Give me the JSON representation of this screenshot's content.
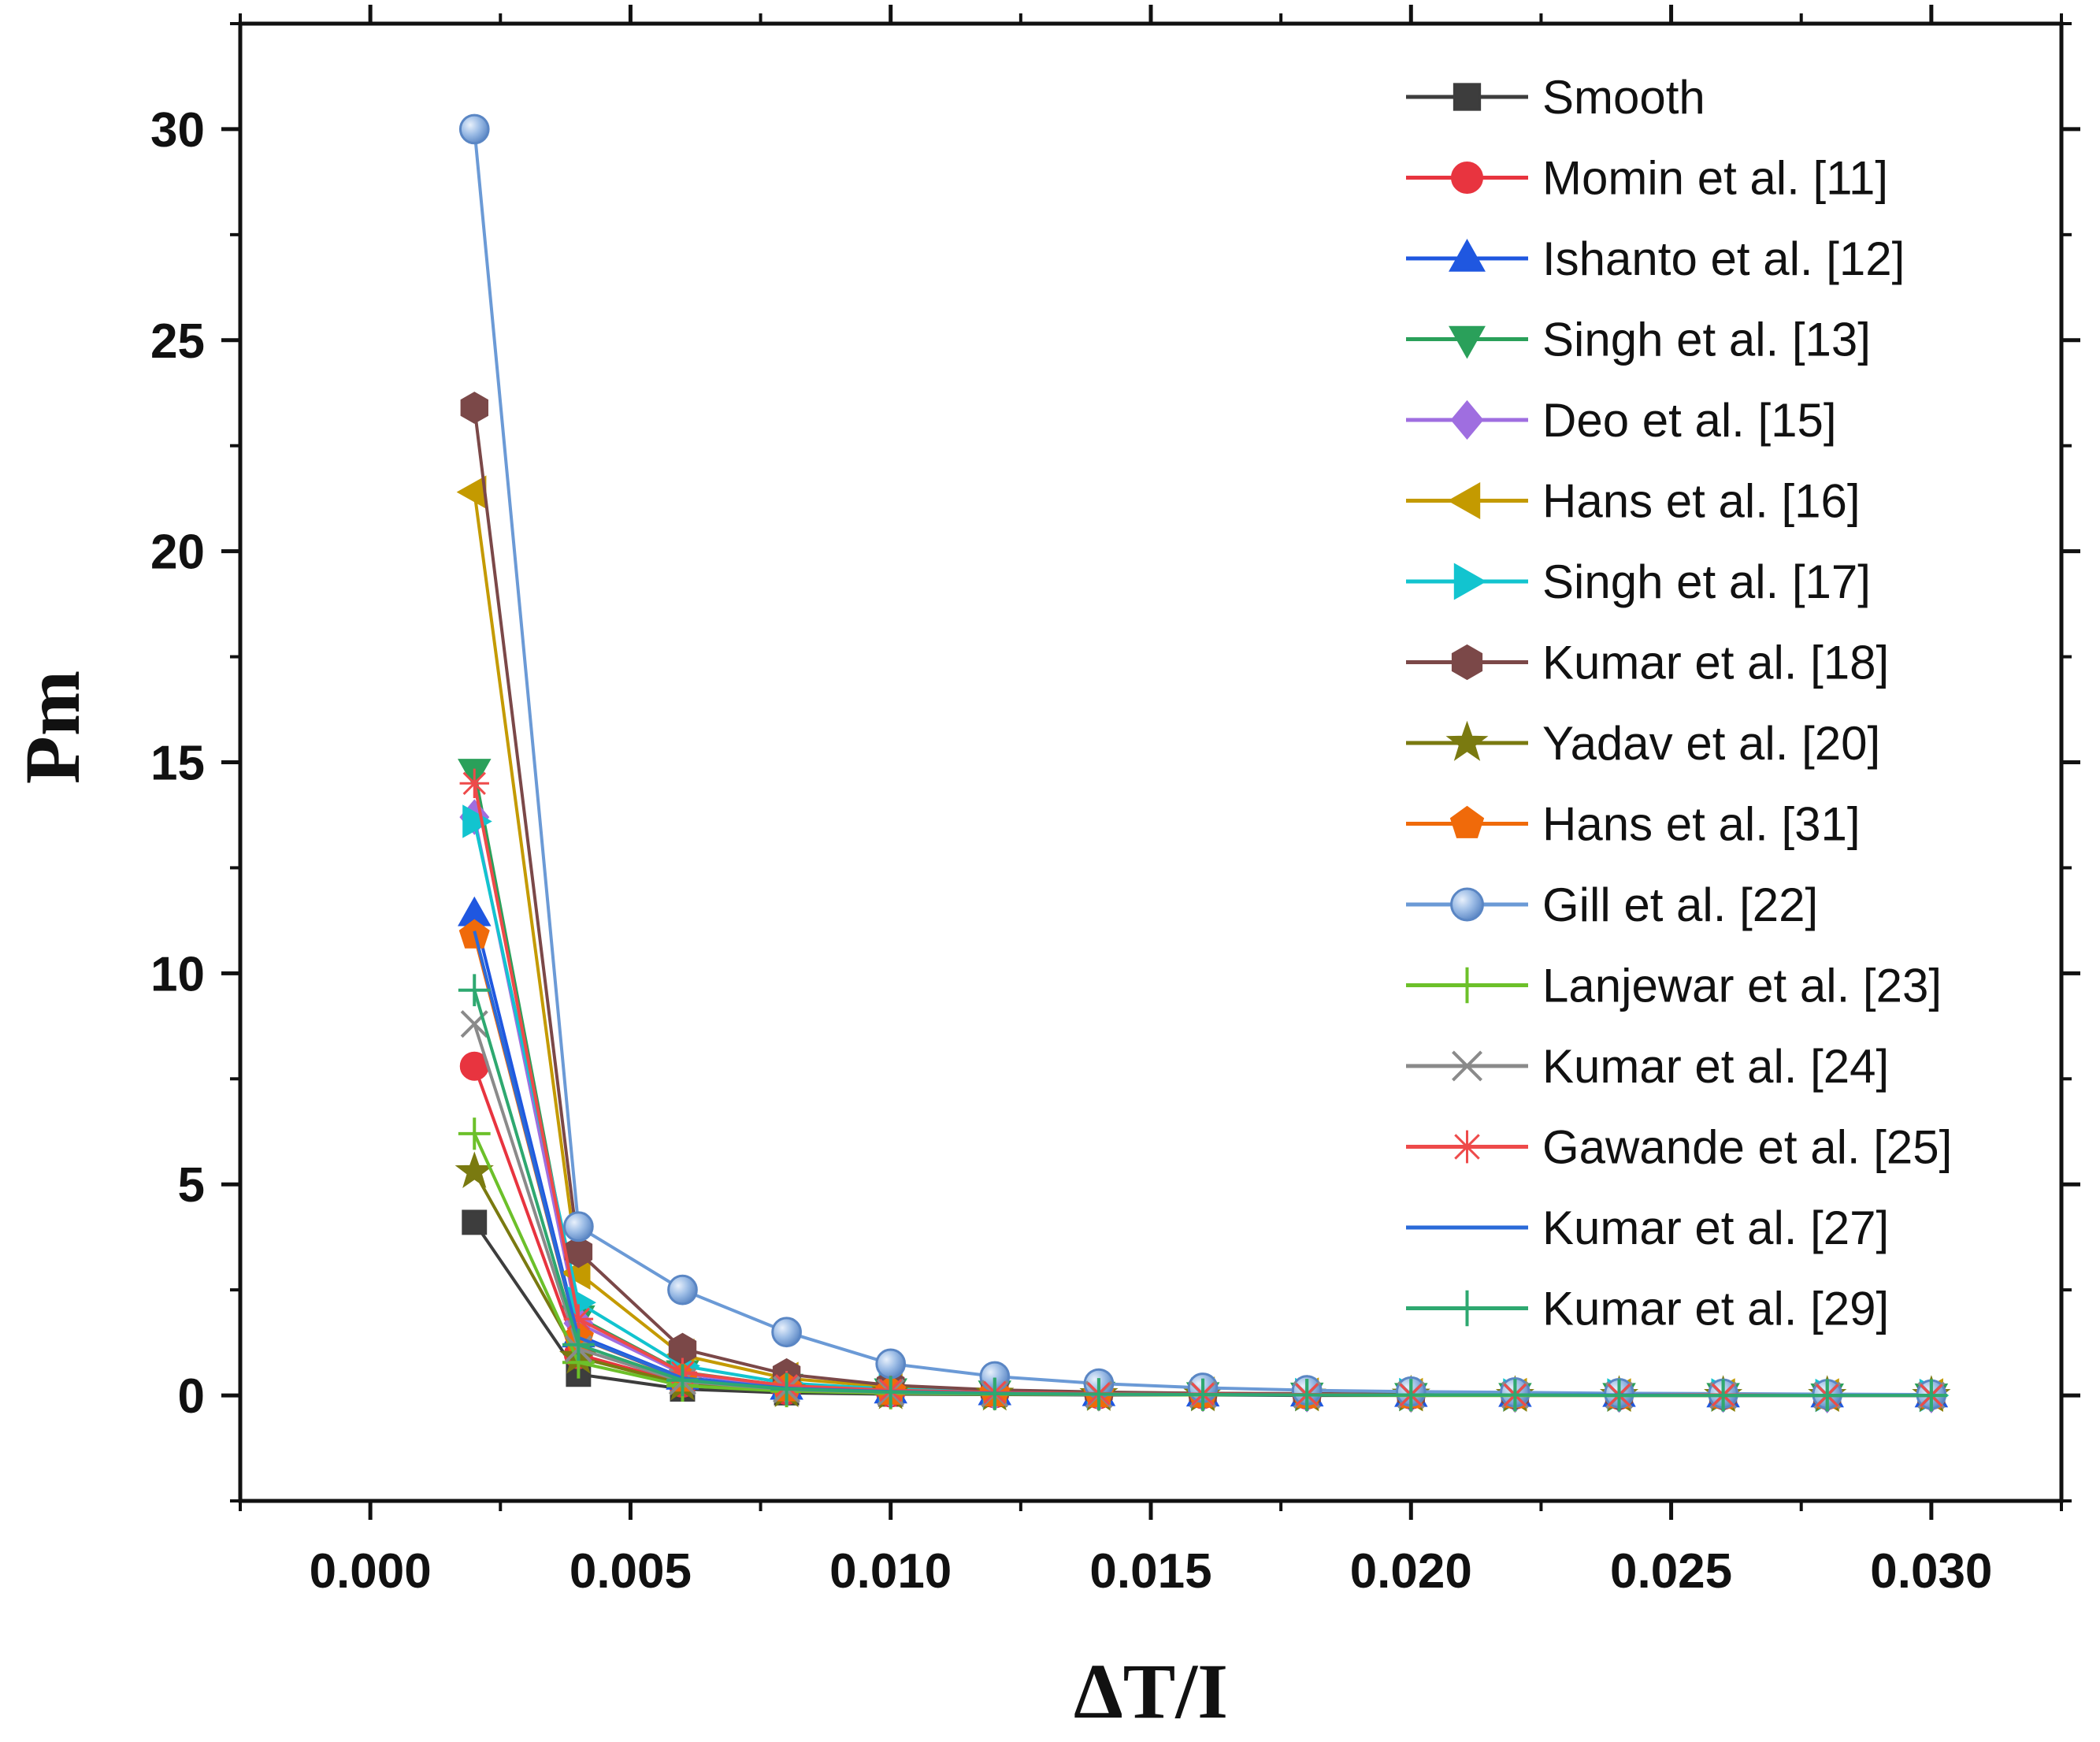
{
  "chart_data": {
    "type": "line",
    "title": "",
    "xlabel": "ΔT/I",
    "ylabel": "Pm",
    "xlim": [
      -0.0025,
      0.0325
    ],
    "ylim": [
      -2.5,
      32.5
    ],
    "xticks": [
      0.0,
      0.005,
      0.01,
      0.015,
      0.02,
      0.025,
      0.03
    ],
    "xtick_labels": [
      "0.000",
      "0.005",
      "0.010",
      "0.015",
      "0.020",
      "0.025",
      "0.030"
    ],
    "yticks": [
      0,
      5,
      10,
      15,
      20,
      25,
      30
    ],
    "ytick_labels": [
      "0",
      "5",
      "10",
      "15",
      "20",
      "25",
      "30"
    ],
    "legend_position": "top-right",
    "x": [
      0.002,
      0.004,
      0.006,
      0.008,
      0.01,
      0.012,
      0.014,
      0.016,
      0.018,
      0.02,
      0.022,
      0.024,
      0.026,
      0.028,
      0.03
    ],
    "series": [
      {
        "name": "Smooth",
        "color": "#3d3d3d",
        "marker": "square",
        "values": [
          4.1,
          0.5,
          0.15,
          0.06,
          0.03,
          0.02,
          0.01,
          0.01,
          0.0,
          0.0,
          0.0,
          0.0,
          0.0,
          0.0,
          0.0
        ]
      },
      {
        "name": "Momin et al. [11]",
        "color": "#e8343f",
        "marker": "circle",
        "values": [
          7.8,
          0.97,
          0.29,
          0.12,
          0.06,
          0.04,
          0.02,
          0.02,
          0.01,
          0.01,
          0.01,
          0.0,
          0.0,
          0.0,
          0.0
        ]
      },
      {
        "name": "Ishanto et al. [12]",
        "color": "#1f57e0",
        "marker": "triangle-up",
        "values": [
          11.4,
          1.42,
          0.42,
          0.18,
          0.09,
          0.05,
          0.03,
          0.02,
          0.02,
          0.01,
          0.01,
          0.01,
          0.0,
          0.0,
          0.0
        ]
      },
      {
        "name": "Singh et al. [13]",
        "color": "#2aa05a",
        "marker": "triangle-down",
        "values": [
          14.8,
          1.85,
          0.55,
          0.23,
          0.12,
          0.07,
          0.04,
          0.03,
          0.02,
          0.01,
          0.01,
          0.01,
          0.01,
          0.0,
          0.0
        ]
      },
      {
        "name": "Deo et al. [15]",
        "color": "#9f6ee0",
        "marker": "diamond",
        "values": [
          13.7,
          1.71,
          0.51,
          0.21,
          0.11,
          0.06,
          0.04,
          0.03,
          0.02,
          0.01,
          0.01,
          0.01,
          0.01,
          0.0,
          0.0
        ]
      },
      {
        "name": "Hans et al. [16]",
        "color": "#c49a00",
        "marker": "triangle-left",
        "values": [
          21.4,
          2.9,
          0.95,
          0.4,
          0.2,
          0.11,
          0.07,
          0.05,
          0.03,
          0.02,
          0.02,
          0.01,
          0.01,
          0.01,
          0.01
        ]
      },
      {
        "name": "Singh et al. [17]",
        "color": "#12c4cf",
        "marker": "triangle-right",
        "values": [
          13.6,
          2.2,
          0.7,
          0.29,
          0.15,
          0.08,
          0.05,
          0.03,
          0.02,
          0.02,
          0.01,
          0.01,
          0.01,
          0.0,
          0.0
        ]
      },
      {
        "name": "Kumar et al. [18]",
        "color": "#7b4848",
        "marker": "hexagon",
        "values": [
          23.4,
          3.4,
          1.1,
          0.5,
          0.24,
          0.13,
          0.08,
          0.05,
          0.04,
          0.03,
          0.02,
          0.01,
          0.01,
          0.01,
          0.01
        ]
      },
      {
        "name": "Yadav et al. [20]",
        "color": "#7a7a10",
        "marker": "star",
        "values": [
          5.3,
          0.9,
          0.27,
          0.11,
          0.06,
          0.03,
          0.02,
          0.01,
          0.01,
          0.01,
          0.0,
          0.0,
          0.0,
          0.0,
          0.0
        ]
      },
      {
        "name": "Hans et al. [31]",
        "color": "#f06a0a",
        "marker": "pentagon",
        "values": [
          10.9,
          1.36,
          0.4,
          0.17,
          0.09,
          0.05,
          0.03,
          0.02,
          0.01,
          0.01,
          0.01,
          0.01,
          0.0,
          0.0,
          0.0
        ]
      },
      {
        "name": "Gill et al. [22]",
        "color": "#6b9ad6",
        "marker": "sphere",
        "values": [
          30.0,
          4.0,
          2.5,
          1.5,
          0.75,
          0.45,
          0.28,
          0.18,
          0.12,
          0.09,
          0.07,
          0.05,
          0.04,
          0.03,
          0.02
        ]
      },
      {
        "name": "Lanjewar et al. [23]",
        "color": "#6cc02a",
        "marker": "plus",
        "values": [
          6.2,
          0.78,
          0.23,
          0.1,
          0.05,
          0.03,
          0.02,
          0.01,
          0.01,
          0.0,
          0.0,
          0.0,
          0.0,
          0.0,
          0.0
        ]
      },
      {
        "name": "Kumar et al. [24]",
        "color": "#8a8a8a",
        "marker": "x",
        "values": [
          8.8,
          1.1,
          0.33,
          0.14,
          0.07,
          0.04,
          0.02,
          0.02,
          0.01,
          0.01,
          0.01,
          0.0,
          0.0,
          0.0,
          0.0
        ]
      },
      {
        "name": "Gawande et al. [25]",
        "color": "#ee4a4a",
        "marker": "asterisk",
        "values": [
          14.5,
          1.81,
          0.54,
          0.23,
          0.12,
          0.07,
          0.04,
          0.03,
          0.02,
          0.01,
          0.01,
          0.01,
          0.01,
          0.0,
          0.0
        ]
      },
      {
        "name": "Kumar et al. [27]",
        "color": "#2a6ad8",
        "marker": "none",
        "values": [
          11.0,
          1.37,
          0.41,
          0.17,
          0.09,
          0.05,
          0.03,
          0.02,
          0.01,
          0.01,
          0.01,
          0.01,
          0.0,
          0.0,
          0.0
        ]
      },
      {
        "name": "Kumar et al. [29]",
        "color": "#2ea870",
        "marker": "plus",
        "values": [
          9.6,
          1.2,
          0.36,
          0.15,
          0.08,
          0.04,
          0.03,
          0.02,
          0.01,
          0.01,
          0.01,
          0.0,
          0.0,
          0.0,
          0.0
        ]
      }
    ]
  }
}
